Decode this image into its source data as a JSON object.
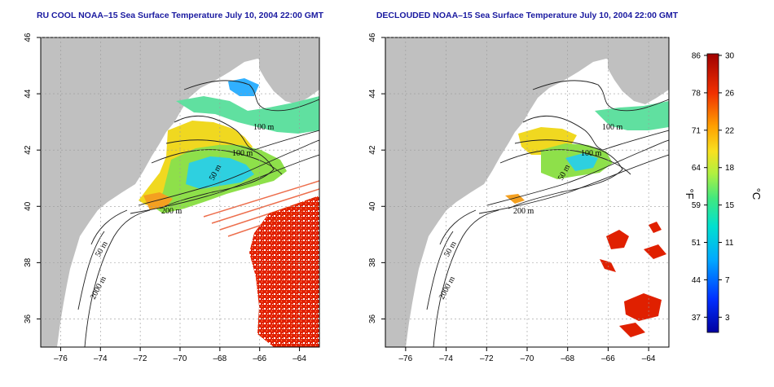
{
  "panels": [
    {
      "id": "left",
      "title": "RU COOL NOAA–15 Sea Surface Temperature July 10, 2004 22:00 GMT",
      "mode": "cloudy",
      "contour_labels": [
        "100 m",
        "100 m",
        "50 m",
        "200 m",
        "50 m",
        "2000 m"
      ]
    },
    {
      "id": "right",
      "title": "DECLOUDED NOAA–15 Sea Surface Temperature July 10, 2004 22:00 GMT",
      "mode": "declouded",
      "contour_labels": [
        "100 m",
        "100 m",
        "50 m",
        "200 m",
        "50 m",
        "2000 m"
      ]
    }
  ],
  "map_axes": {
    "x_ticks": [
      "–76",
      "–74",
      "–72",
      "–70",
      "–68",
      "–66",
      "–64"
    ],
    "y_ticks": [
      "46",
      "44",
      "42",
      "40",
      "38",
      "36"
    ]
  },
  "colorbar": {
    "fahrenheit_ticks": [
      "86",
      "78",
      "71",
      "64",
      "59",
      "51",
      "44",
      "37"
    ],
    "celsius_ticks": [
      "30",
      "26",
      "22",
      "18",
      "15",
      "11",
      "7",
      "3"
    ],
    "fahrenheit_unit": "°F",
    "celsius_unit": "°C",
    "colors": [
      "#0000a0",
      "#0030ff",
      "#00a8ff",
      "#00e0d0",
      "#40e880",
      "#b0f040",
      "#f8e020",
      "#ffa000",
      "#f03000",
      "#a00000"
    ]
  },
  "colors": {
    "land": "#c0c0c0",
    "title": "#1a1aa0",
    "grid": "#9a9a9a"
  }
}
